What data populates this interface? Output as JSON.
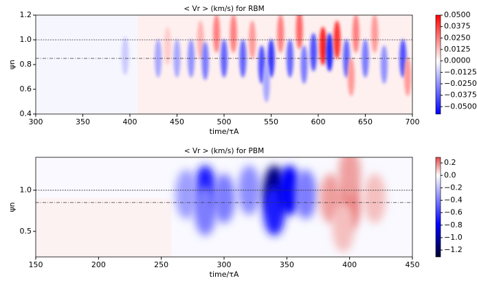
{
  "chart_data": [
    {
      "type": "contour",
      "title": "< Vr > (km/s) for RBM",
      "xlabel": "time/τA",
      "ylabel": "ψn",
      "colormap": "bwr",
      "xlim": [
        300,
        700
      ],
      "ylim": [
        0.4,
        1.2
      ],
      "xticks": [
        300,
        350,
        400,
        450,
        500,
        550,
        600,
        650,
        700
      ],
      "yticks": [
        0.4,
        0.6,
        0.8,
        {
          "value": 1,
          "label": "1.0"
        },
        1.2
      ],
      "hlines": [
        1,
        0.85
      ],
      "clim": [
        -0.058,
        0.05
      ],
      "cticks": [
        {
          "value": 0.05,
          "label": "0.0500"
        },
        0.0375,
        {
          "value": 0.025,
          "label": "0.0250"
        },
        0.0125,
        {
          "value": 0,
          "label": "0.0000"
        },
        {
          "value": -0.0125,
          "label": "−0.0125"
        },
        {
          "value": -0.025,
          "label": "−0.0250"
        },
        {
          "value": -0.0375,
          "label": "−0.0375"
        },
        {
          "value": -0.05,
          "label": "−0.0500"
        }
      ],
      "regions": [
        {
          "x0": 300,
          "x1": 408,
          "y0": 0.4,
          "y1": 1.2,
          "value": -0.002
        },
        {
          "x0": 408,
          "x1": 700,
          "y0": 0.4,
          "y1": 1.2,
          "value": 0.003
        }
      ],
      "blobs": [
        {
          "x": 395,
          "y": 0.87,
          "value": -0.012
        },
        {
          "x": 430,
          "y": 0.85,
          "value": -0.02
        },
        {
          "x": 440,
          "y": 0.95,
          "value": 0.01
        },
        {
          "x": 450,
          "y": 0.85,
          "value": -0.02
        },
        {
          "x": 465,
          "y": 0.85,
          "value": -0.025
        },
        {
          "x": 475,
          "y": 1.0,
          "value": 0.015
        },
        {
          "x": 480,
          "y": 0.83,
          "value": -0.03
        },
        {
          "x": 492,
          "y": 1.05,
          "value": 0.025
        },
        {
          "x": 500,
          "y": 0.85,
          "value": -0.035
        },
        {
          "x": 510,
          "y": 1.05,
          "value": 0.025
        },
        {
          "x": 520,
          "y": 0.85,
          "value": -0.035
        },
        {
          "x": 530,
          "y": 1.0,
          "value": 0.02
        },
        {
          "x": 540,
          "y": 0.8,
          "value": -0.04
        },
        {
          "x": 550,
          "y": 0.85,
          "value": -0.045
        },
        {
          "x": 560,
          "y": 1.05,
          "value": 0.025
        },
        {
          "x": 570,
          "y": 0.85,
          "value": -0.035
        },
        {
          "x": 580,
          "y": 1.08,
          "value": 0.03
        },
        {
          "x": 585,
          "y": 0.8,
          "value": -0.03
        },
        {
          "x": 595,
          "y": 0.9,
          "value": -0.04
        },
        {
          "x": 605,
          "y": 0.95,
          "value": 0.045
        },
        {
          "x": 612,
          "y": 0.9,
          "value": -0.05
        },
        {
          "x": 620,
          "y": 1.0,
          "value": 0.04
        },
        {
          "x": 630,
          "y": 0.85,
          "value": -0.035
        },
        {
          "x": 640,
          "y": 1.05,
          "value": 0.025
        },
        {
          "x": 650,
          "y": 0.85,
          "value": -0.03
        },
        {
          "x": 660,
          "y": 1.05,
          "value": 0.02
        },
        {
          "x": 670,
          "y": 0.8,
          "value": -0.025
        },
        {
          "x": 690,
          "y": 0.85,
          "value": -0.04
        },
        {
          "x": 695,
          "y": 0.7,
          "value": 0.02
        },
        {
          "x": 635,
          "y": 0.7,
          "value": 0.02
        },
        {
          "x": 545,
          "y": 0.65,
          "value": -0.02
        }
      ]
    },
    {
      "type": "contour",
      "title": "< Vr > (km/s) for PBM",
      "xlabel": "time/τA",
      "ylabel": "ψn",
      "colormap": "seismic",
      "xlim": [
        150,
        450
      ],
      "ylim": [
        0.19,
        1.4
      ],
      "xticks": [
        150,
        200,
        250,
        300,
        350,
        400,
        450
      ],
      "yticks": [
        0.5,
        {
          "value": 1,
          "label": "1.0"
        }
      ],
      "hlines": [
        1,
        0.85
      ],
      "clim": [
        -1.31,
        0.29
      ],
      "cticks": [
        0.2,
        {
          "value": 0,
          "label": "0.0"
        },
        {
          "value": -0.2,
          "label": "−0.2"
        },
        {
          "value": -0.4,
          "label": "−0.4"
        },
        {
          "value": -0.6,
          "label": "−0.6"
        },
        {
          "value": -0.8,
          "label": "−0.8"
        },
        {
          "value": -1,
          "label": "−1.0"
        },
        {
          "value": -1.2,
          "label": "−1.2"
        }
      ],
      "regions": [
        {
          "x0": 150,
          "x1": 450,
          "y0": 0.19,
          "y1": 1.4,
          "value": -0.02
        },
        {
          "x0": 150,
          "x1": 258,
          "y0": 0.19,
          "y1": 0.9,
          "value": 0.02
        }
      ],
      "blobs": [
        {
          "x": 285,
          "y": 1.0,
          "value": -0.7
        },
        {
          "x": 285,
          "y": 0.75,
          "value": -0.4
        },
        {
          "x": 270,
          "y": 0.95,
          "value": -0.3
        },
        {
          "x": 300,
          "y": 0.9,
          "value": -0.4
        },
        {
          "x": 320,
          "y": 1.0,
          "value": -0.35
        },
        {
          "x": 340,
          "y": 1.0,
          "value": -1.1
        },
        {
          "x": 340,
          "y": 0.75,
          "value": -0.7
        },
        {
          "x": 352,
          "y": 1.0,
          "value": -0.8
        },
        {
          "x": 365,
          "y": 0.95,
          "value": -0.4
        },
        {
          "x": 385,
          "y": 0.9,
          "value": 0.15
        },
        {
          "x": 400,
          "y": 0.82,
          "value": 0.2
        },
        {
          "x": 400,
          "y": 1.2,
          "value": 0.15
        },
        {
          "x": 420,
          "y": 0.9,
          "value": 0.1
        },
        {
          "x": 395,
          "y": 0.55,
          "value": 0.1
        }
      ]
    }
  ]
}
